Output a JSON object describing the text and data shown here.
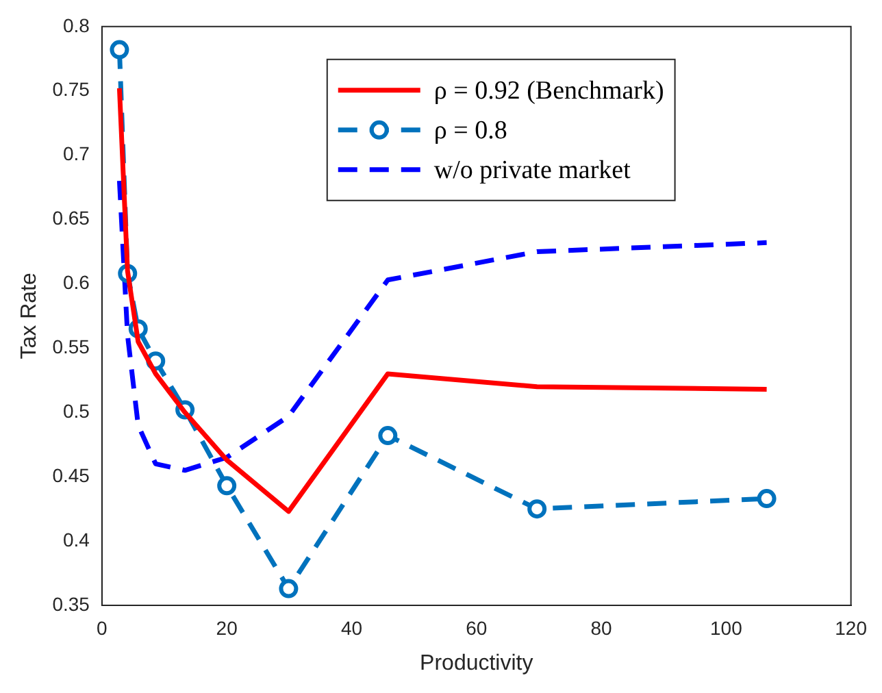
{
  "chart_data": {
    "type": "line",
    "xlabel": "Productivity",
    "ylabel": "Tax Rate",
    "x": [
      2.8,
      4.1,
      5.8,
      8.6,
      13.3,
      20,
      29.9,
      45.8,
      69.7,
      106.5
    ],
    "series": [
      {
        "name": "ρ = 0.92 (Benchmark)",
        "color": "#ff0000",
        "values": [
          0.752,
          0.61,
          0.555,
          0.53,
          0.5,
          0.463,
          0.423,
          0.53,
          0.52,
          0.518
        ],
        "marker": "none",
        "line_style": "solid"
      },
      {
        "name": "ρ = 0.8",
        "color": "#0072bd",
        "values": [
          0.782,
          0.608,
          0.565,
          0.54,
          0.502,
          0.443,
          0.363,
          0.482,
          0.425,
          0.433
        ],
        "marker": "circle",
        "line_style": "dashed"
      },
      {
        "name": "w/o private market",
        "color": "#0000ff",
        "values": [
          0.68,
          0.56,
          0.49,
          0.46,
          0.455,
          0.465,
          0.497,
          0.603,
          0.625,
          0.632
        ],
        "marker": "none",
        "line_style": "dashed"
      }
    ],
    "xlim": [
      0,
      120
    ],
    "xticks": [
      0,
      20,
      40,
      60,
      80,
      100,
      120
    ],
    "ylim": [
      0.35,
      0.8
    ],
    "yticks": [
      0.35,
      0.4,
      0.45,
      0.5,
      0.55,
      0.6,
      0.65,
      0.7,
      0.75,
      0.8
    ],
    "grid": false,
    "legend": "top right"
  }
}
